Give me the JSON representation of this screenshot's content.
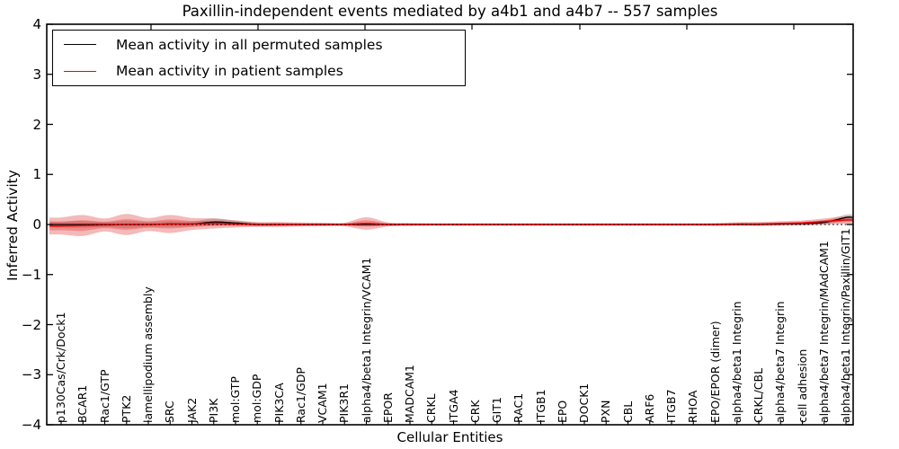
{
  "figure": {
    "title": "Paxillin-independent events mediated by a4b1 and a4b7 -- 557 samples",
    "sample_count_in_title": "557"
  },
  "legend": {
    "entries": [
      {
        "label": "Mean activity in all permuted samples",
        "color": "#000000"
      },
      {
        "label": "Mean activity in patient samples",
        "color": "#f10000"
      }
    ]
  },
  "colors": {
    "permuted_line": "#000000",
    "patient_line": "#f10000",
    "patient_band": "#dd2c2c",
    "permuted_band": "#999999",
    "frame": "#000000",
    "background": "#ffffff",
    "zero_line": "#000000"
  },
  "chart_data": {
    "type": "area",
    "title": "Paxillin-independent events mediated by a4b1 and a4b7 -- 557 samples",
    "xlabel": "Cellular Entities",
    "ylabel": "Inferred Activity",
    "ylim": [
      -4,
      4
    ],
    "grid": false,
    "legend_position": "upper left",
    "y_ticks": [
      "4",
      "3",
      "2",
      "1",
      "0",
      "−1",
      "−2",
      "−3",
      "−4"
    ],
    "categories": [
      "p130Cas/Crk/Dock1",
      "BCAR1",
      "Rac1/GTP",
      "PTK2",
      "lamellipodium assembly",
      "SRC",
      "JAK2",
      "PI3K",
      "mol:GTP",
      "mol:GDP",
      "PIK3CA",
      "Rac1/GDP",
      "VCAM1",
      "PIK3R1",
      "alpha4/beta1 Integrin/VCAM1",
      "EPOR",
      "MADCAM1",
      "CRKL",
      "ITGA4",
      "CRK",
      "GIT1",
      "RAC1",
      "ITGB1",
      "EPO",
      "DOCK1",
      "PXN",
      "CBL",
      "ARF6",
      "ITGB7",
      "RHOA",
      "EPO/EPOR (dimer)",
      "alpha4/beta1 Integrin",
      "CRKL/CBL",
      "alpha4/beta7 Integrin",
      "cell adhesion",
      "alpha4/beta7 Integrin/MAdCAM1",
      "alpha4/beta1 Integrin/Paxillin/GIT1"
    ],
    "series": [
      {
        "name": "Mean activity in all permuted samples",
        "color": "#000000",
        "values": [
          0,
          0,
          0,
          0,
          0,
          0.01,
          0.01,
          0.05,
          0.03,
          0,
          0,
          0,
          0,
          0,
          0,
          0,
          0,
          0,
          0,
          0,
          0,
          0,
          0,
          0,
          0,
          0,
          0,
          0,
          0,
          0,
          0,
          0,
          0,
          0.01,
          0.02,
          0.04,
          0.14
        ]
      },
      {
        "name": "Mean activity in patient samples",
        "color": "#f10000",
        "values": [
          -0.03,
          -0.02,
          -0.01,
          0,
          0,
          0.01,
          0.01,
          0.02,
          0.01,
          0,
          0,
          0,
          0,
          0,
          0.02,
          0,
          0,
          0,
          0,
          0,
          0,
          0,
          0,
          0,
          0,
          0,
          0,
          0,
          0,
          0,
          0,
          0.01,
          0.01,
          0.02,
          0.03,
          0.06,
          0.09
        ]
      }
    ],
    "patient_band_upper": [
      0.14,
      0.19,
      0.12,
      0.21,
      0.13,
      0.19,
      0.13,
      0.12,
      0.08,
      0.05,
      0.05,
      0.04,
      0.035,
      0.035,
      0.145,
      0.04,
      0.03,
      0.025,
      0.025,
      0.025,
      0.025,
      0.025,
      0.025,
      0.025,
      0.025,
      0.025,
      0.025,
      0.025,
      0.025,
      0.025,
      0.03,
      0.045,
      0.05,
      0.065,
      0.08,
      0.12,
      0.17
    ],
    "patient_band_lower": [
      -0.2,
      -0.23,
      -0.14,
      -0.21,
      -0.13,
      -0.17,
      -0.11,
      -0.08,
      -0.06,
      -0.05,
      -0.05,
      -0.04,
      -0.035,
      -0.035,
      -0.105,
      -0.04,
      -0.03,
      -0.025,
      -0.025,
      -0.025,
      -0.025,
      -0.025,
      -0.025,
      -0.025,
      -0.025,
      -0.025,
      -0.025,
      -0.025,
      -0.025,
      -0.025,
      -0.03,
      -0.025,
      -0.03,
      -0.025,
      -0.02,
      0.0,
      0.01
    ],
    "permuted_band_upper": [
      0.06,
      0.07,
      0.05,
      0.07,
      0.05,
      0.07,
      0.06,
      0.12,
      0.08,
      0.035,
      0.03,
      0.025,
      0.025,
      0.025,
      0.03,
      0.025,
      0.02,
      0.02,
      0.02,
      0.02,
      0.02,
      0.02,
      0.02,
      0.02,
      0.02,
      0.02,
      0.02,
      0.02,
      0.02,
      0.02,
      0.02,
      0.02,
      0.02,
      0.035,
      0.05,
      0.08,
      0.2
    ],
    "permuted_band_lower": [
      -0.06,
      -0.07,
      -0.05,
      -0.07,
      -0.05,
      -0.05,
      -0.04,
      -0.02,
      -0.02,
      -0.035,
      -0.03,
      -0.025,
      -0.025,
      -0.025,
      -0.03,
      -0.025,
      -0.02,
      -0.02,
      -0.02,
      -0.02,
      -0.02,
      -0.02,
      -0.02,
      -0.02,
      -0.02,
      -0.02,
      -0.02,
      -0.02,
      -0.02,
      -0.02,
      -0.02,
      -0.02,
      -0.02,
      -0.015,
      -0.01,
      0.0,
      0.08
    ],
    "zero_line": 0
  }
}
